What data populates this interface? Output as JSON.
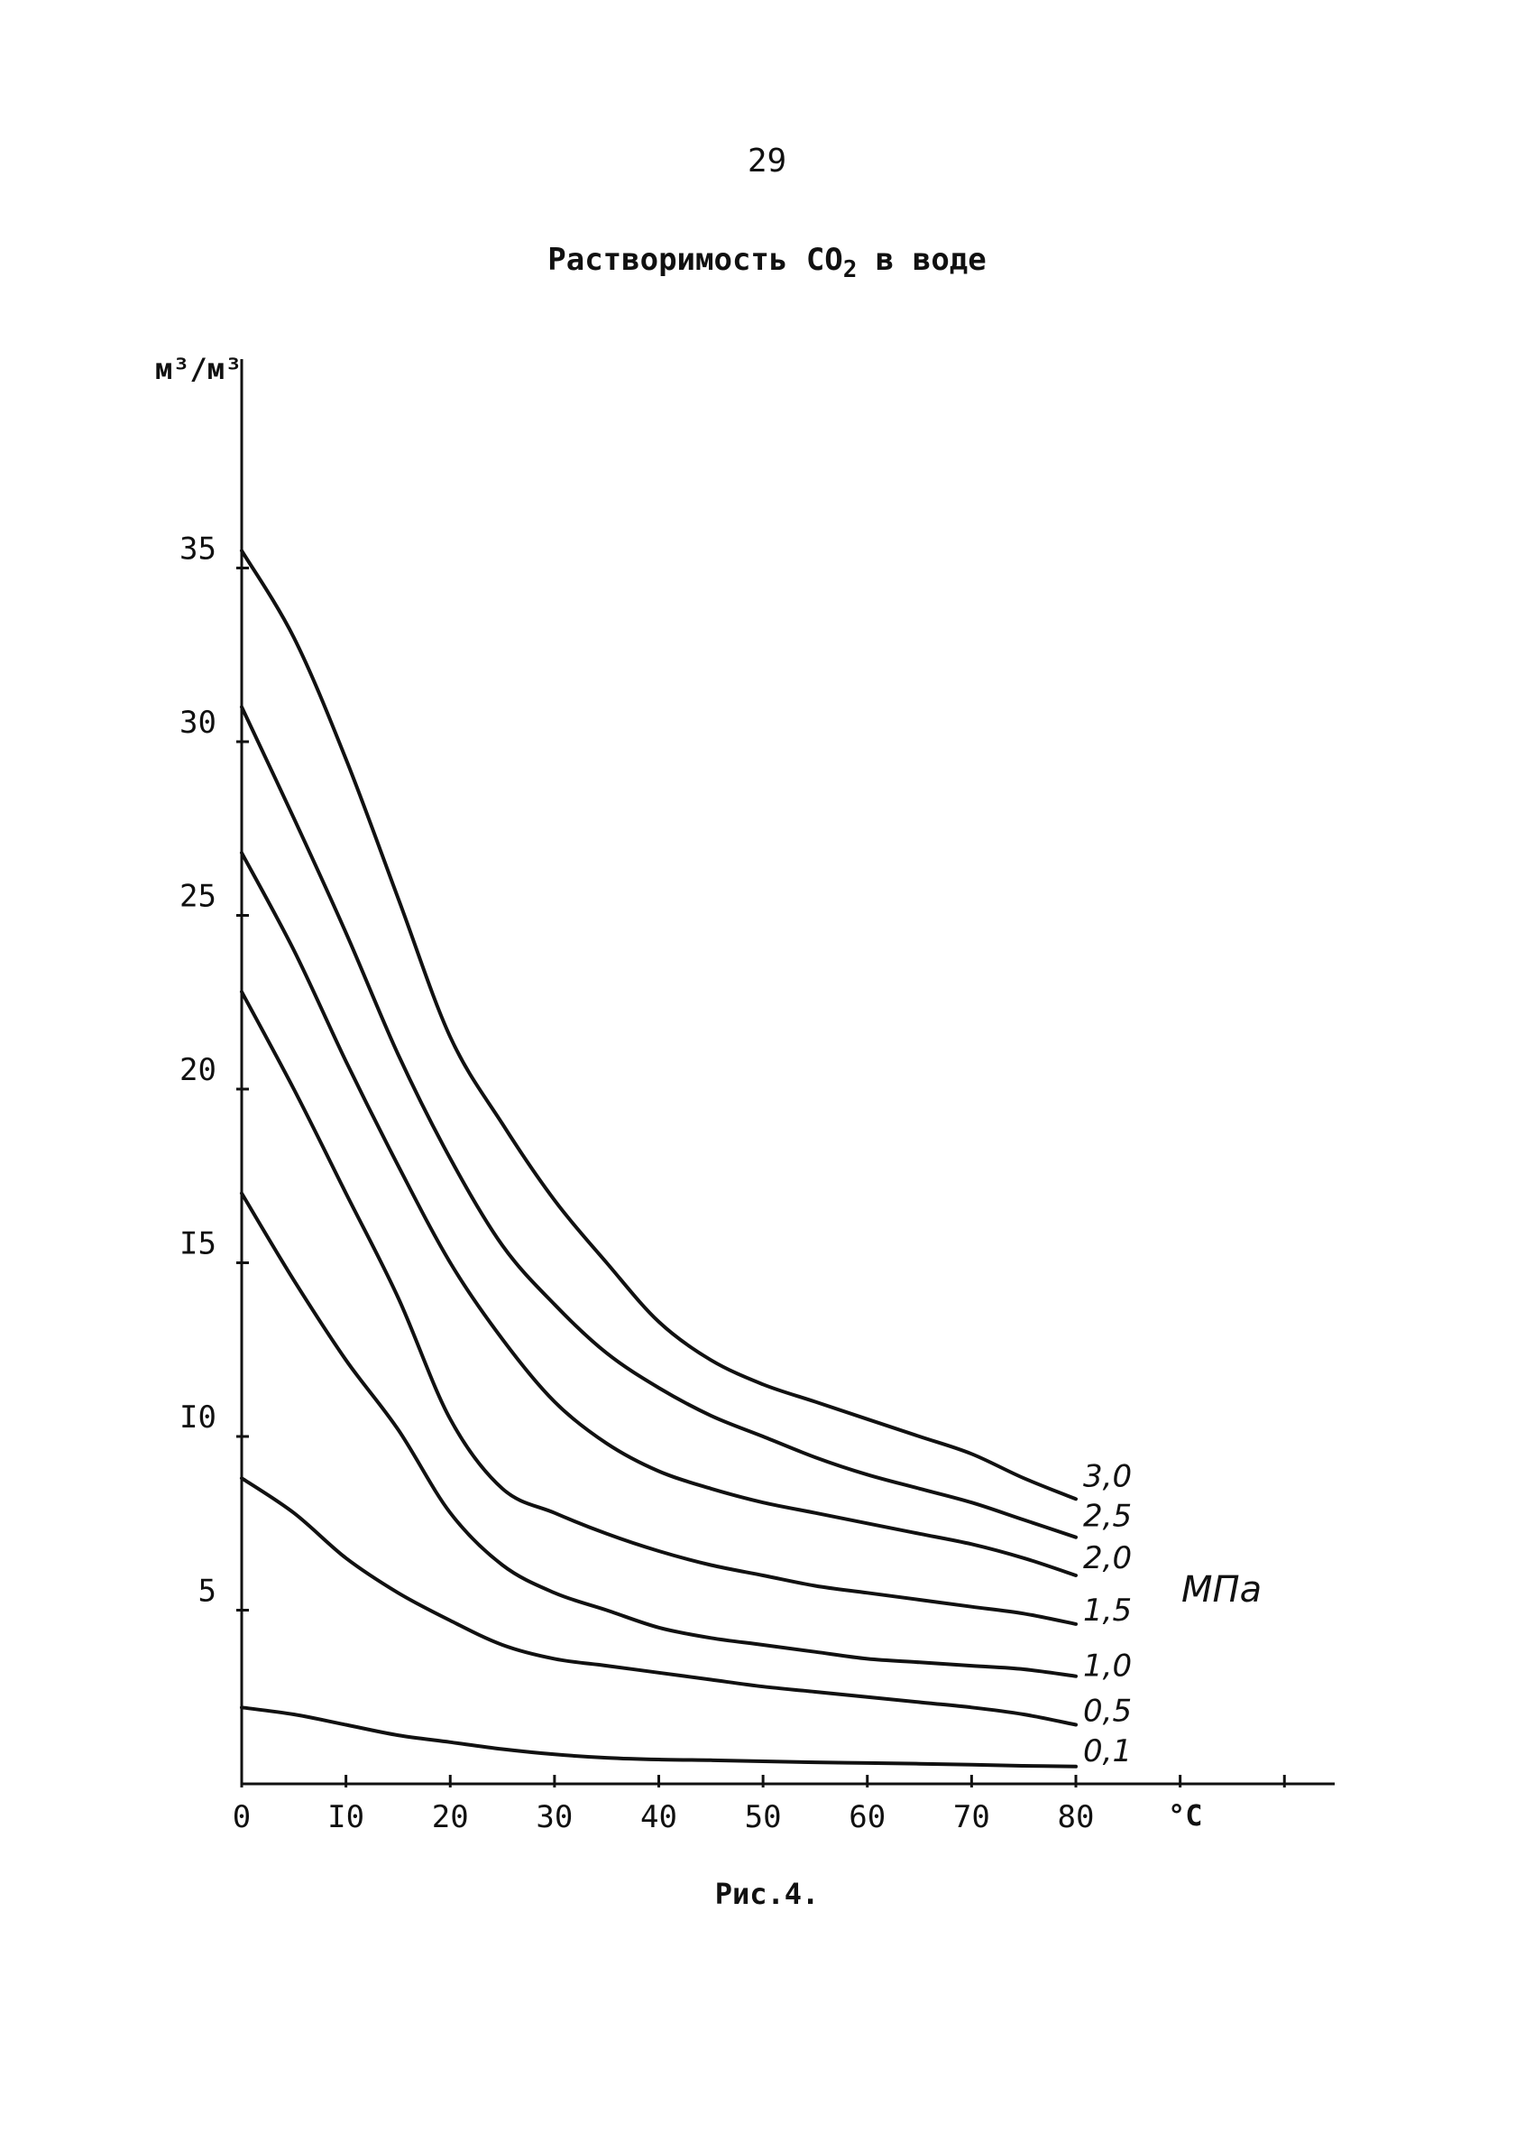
{
  "page_number": "29",
  "figure_caption": "Рис.4.",
  "chart_data": {
    "type": "line",
    "title": "Растворимость CO",
    "title_subscript": "2",
    "title_suffix": "в воде",
    "xlabel": "°C",
    "ylabel": "м³/м³",
    "series_unit": "МПа",
    "xlim": [
      0,
      80
    ],
    "ylim": [
      0,
      36
    ],
    "x_ticks": [
      {
        "value": 0,
        "label": "0"
      },
      {
        "value": 10,
        "label": "I0"
      },
      {
        "value": 20,
        "label": "20"
      },
      {
        "value": 30,
        "label": "30"
      },
      {
        "value": 40,
        "label": "40"
      },
      {
        "value": 50,
        "label": "50"
      },
      {
        "value": 60,
        "label": "60"
      },
      {
        "value": 70,
        "label": "70"
      },
      {
        "value": 80,
        "label": "80"
      }
    ],
    "y_ticks": [
      {
        "value": 5,
        "label": "5"
      },
      {
        "value": 10,
        "label": "I0"
      },
      {
        "value": 15,
        "label": "I5"
      },
      {
        "value": 20,
        "label": "20"
      },
      {
        "value": 25,
        "label": "25"
      },
      {
        "value": 30,
        "label": "30"
      },
      {
        "value": 35,
        "label": "35"
      }
    ],
    "grid": false,
    "x": [
      0,
      5,
      10,
      15,
      20,
      25,
      30,
      35,
      40,
      45,
      50,
      55,
      60,
      65,
      70,
      75,
      80
    ],
    "series": [
      {
        "name": "3,0",
        "values": [
          35.5,
          33,
          29.5,
          25.5,
          21.5,
          19,
          16.8,
          15,
          13.3,
          12.2,
          11.5,
          11,
          10.5,
          10,
          9.5,
          8.8,
          8.2
        ]
      },
      {
        "name": "2,5",
        "values": [
          31,
          27.8,
          24.5,
          21,
          18,
          15.5,
          13.8,
          12.4,
          11.4,
          10.6,
          10,
          9.4,
          8.9,
          8.5,
          8.1,
          7.6,
          7.1
        ]
      },
      {
        "name": "2,0",
        "values": [
          26.8,
          24,
          20.8,
          17.8,
          15,
          12.8,
          11,
          9.8,
          9,
          8.5,
          8.1,
          7.8,
          7.5,
          7.2,
          6.9,
          6.5,
          6
        ]
      },
      {
        "name": "1,5",
        "values": [
          22.8,
          20,
          17,
          14,
          10.5,
          8.5,
          7.8,
          7.2,
          6.7,
          6.3,
          6,
          5.7,
          5.5,
          5.3,
          5.1,
          4.9,
          4.6
        ]
      },
      {
        "name": "1,0",
        "values": [
          17,
          14.5,
          12.2,
          10.2,
          7.8,
          6.3,
          5.5,
          5,
          4.5,
          4.2,
          4,
          3.8,
          3.6,
          3.5,
          3.4,
          3.3,
          3.1
        ]
      },
      {
        "name": "0,5",
        "values": [
          8.8,
          7.8,
          6.5,
          5.5,
          4.7,
          4,
          3.6,
          3.4,
          3.2,
          3,
          2.8,
          2.65,
          2.5,
          2.35,
          2.2,
          2,
          1.7
        ]
      },
      {
        "name": "0,1",
        "values": [
          2.2,
          2,
          1.7,
          1.4,
          1.2,
          1,
          0.85,
          0.75,
          0.7,
          0.68,
          0.65,
          0.62,
          0.6,
          0.58,
          0.55,
          0.52,
          0.5
        ]
      }
    ]
  }
}
